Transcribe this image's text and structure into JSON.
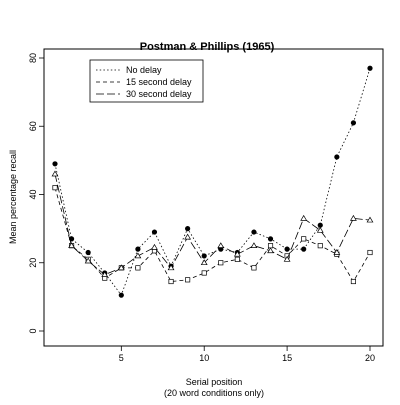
{
  "chart_data": {
    "type": "line",
    "title": "Postman & Phillips (1965)",
    "xlabel": "Serial position",
    "xlabel_sub": "(20 word conditions only)",
    "ylabel": "Mean percentage recall",
    "xlim": [
      1,
      20
    ],
    "ylim": [
      0,
      80
    ],
    "xticks": [
      5,
      10,
      15,
      20
    ],
    "yticks": [
      0,
      20,
      40,
      60,
      80
    ],
    "grid": false,
    "legend_position": "top-left",
    "x": [
      1,
      2,
      3,
      4,
      5,
      6,
      7,
      8,
      9,
      10,
      11,
      12,
      13,
      14,
      15,
      16,
      17,
      18,
      19,
      20
    ],
    "series": [
      {
        "name": "No delay",
        "line_style": "dotted",
        "marker": "filled-circle",
        "values": [
          49,
          27,
          23,
          17,
          10.5,
          24,
          29,
          19,
          30,
          22,
          24,
          23,
          29,
          27,
          24,
          24,
          31,
          51,
          61,
          77
        ]
      },
      {
        "name": "15 second delay",
        "line_style": "dashed",
        "marker": "open-square",
        "values": [
          42,
          25,
          21,
          15.5,
          18.5,
          18.5,
          23.5,
          14.5,
          15,
          17,
          20,
          21,
          18.5,
          25,
          22,
          27,
          25,
          22.5,
          14.5,
          23
        ]
      },
      {
        "name": "30 second delay",
        "line_style": "longdash",
        "marker": "open-triangle",
        "values": [
          46,
          25,
          20.5,
          16.5,
          18.5,
          22,
          24.5,
          18.5,
          27.5,
          20,
          25,
          22.5,
          25,
          23.5,
          21,
          33,
          29.5,
          23,
          33,
          32.5
        ]
      }
    ]
  }
}
